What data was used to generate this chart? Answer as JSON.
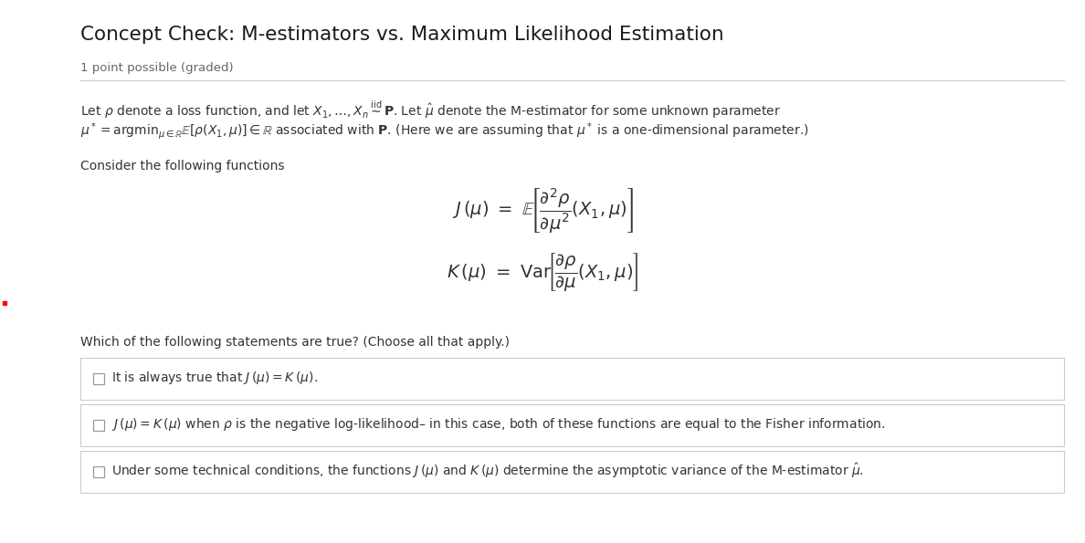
{
  "title": "Concept Check: M-estimators vs. Maximum Likelihood Estimation",
  "subtitle": "1 point possible (graded)",
  "bg_color": "#ffffff",
  "text_color": "#333333",
  "gray_text": "#666666",
  "line_color": "#cccccc",
  "box_bg": "#ffffff",
  "para_line1": "Let $\\rho$ denote a loss function, and let $X_1, \\ldots, X_n \\overset{\\mathrm{iid}}{\\sim} \\mathbf{P}$. Let $\\hat{\\mu}$ denote the M-estimator for some unknown parameter",
  "para_line2": "$\\mu^* = \\mathrm{argmin}_{\\mu \\in \\mathbb{R}}\\mathbb{E}[\\rho(X_1,\\mu)] \\in \\mathbb{R}$ associated with $\\mathbf{P}$. (Here we are assuming that $\\mu^*$ is a one-dimensional parameter.)",
  "consider_text": "Consider the following functions",
  "which_text": "Which of the following statements are true? (Choose all that apply.)",
  "option1": "It is always true that $J\\,(\\mu) = K\\,(\\mu)$.",
  "option2": "$J\\,(\\mu) = K\\,(\\mu)$ when $\\rho$ is the negative log-likelihood– in this case, both of these functions are equal to the Fisher information.",
  "option3": "Under some technical conditions, the functions $J\\,(\\mu)$ and $K\\,(\\mu)$ determine the asymptotic variance of the M-estimator $\\hat{\\mu}$."
}
